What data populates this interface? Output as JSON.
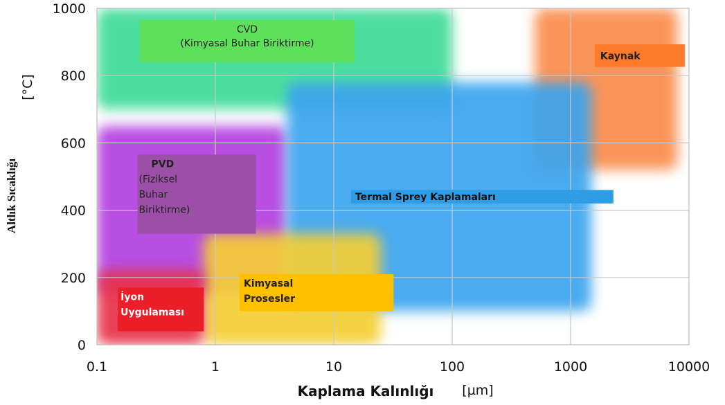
{
  "chart_data": {
    "type": "area",
    "xlabel": "Kaplama Kalınlığı",
    "xunit": "[µm]",
    "ylabel": "Altlık Sıcaklığı",
    "yunit": "[°C]",
    "x_scale": "log",
    "xlim": [
      0.1,
      10000
    ],
    "ylim": [
      0,
      1000
    ],
    "x_ticks": [
      "0.1",
      "1",
      "10",
      "100",
      "1000",
      "10000"
    ],
    "y_ticks": [
      "0",
      "200",
      "400",
      "600",
      "800",
      "1000"
    ],
    "grid": true,
    "regions": [
      {
        "name": "CVD",
        "label": [
          "CVD",
          "(Kimyasal Buhar Biriktirme)"
        ],
        "x_range": [
          0.1,
          100
        ],
        "y_range": [
          700,
          1000
        ],
        "color": "#3ddc97",
        "label_bg": "#5ee05a",
        "label_color": "#222222"
      },
      {
        "name": "Kaynak",
        "label": [
          "Kaynak"
        ],
        "x_range": [
          500,
          8000
        ],
        "y_range": [
          520,
          1000
        ],
        "color": "#fb8c4b",
        "label_bg": "#fb7b2a",
        "label_color": "#222222"
      },
      {
        "name": "PVD",
        "label": [
          "PVD",
          "(Fiziksel",
          "Buhar",
          "Biriktirme)"
        ],
        "x_range": [
          0.1,
          4
        ],
        "y_range": [
          150,
          650
        ],
        "color": "#b23fe0",
        "label_bg": "#9b4fa6",
        "label_color": "#222222"
      },
      {
        "name": "Termal Sprey Kaplamaları",
        "label": [
          "Termal Sprey Kaplamaları"
        ],
        "x_range": [
          4,
          1500
        ],
        "y_range": [
          100,
          780
        ],
        "color": "#3aa4ee",
        "label_bg": "#2f9de6",
        "label_color": "#111111"
      },
      {
        "name": "Kimyasal Prosesler",
        "label": [
          "Kimyasal",
          "Prosesler"
        ],
        "x_range": [
          0.8,
          25
        ],
        "y_range": [
          0,
          330
        ],
        "color": "#f5cf36",
        "label_bg": "#ffc000",
        "label_color": "#222222"
      },
      {
        "name": "İyon Uygulaması",
        "label": [
          "İyon",
          "Uygulaması"
        ],
        "x_range": [
          0.1,
          0.8
        ],
        "y_range": [
          0,
          220
        ],
        "color": "#e8334a",
        "label_bg": "#ea1f2a",
        "label_color": "#ffffff"
      }
    ]
  }
}
